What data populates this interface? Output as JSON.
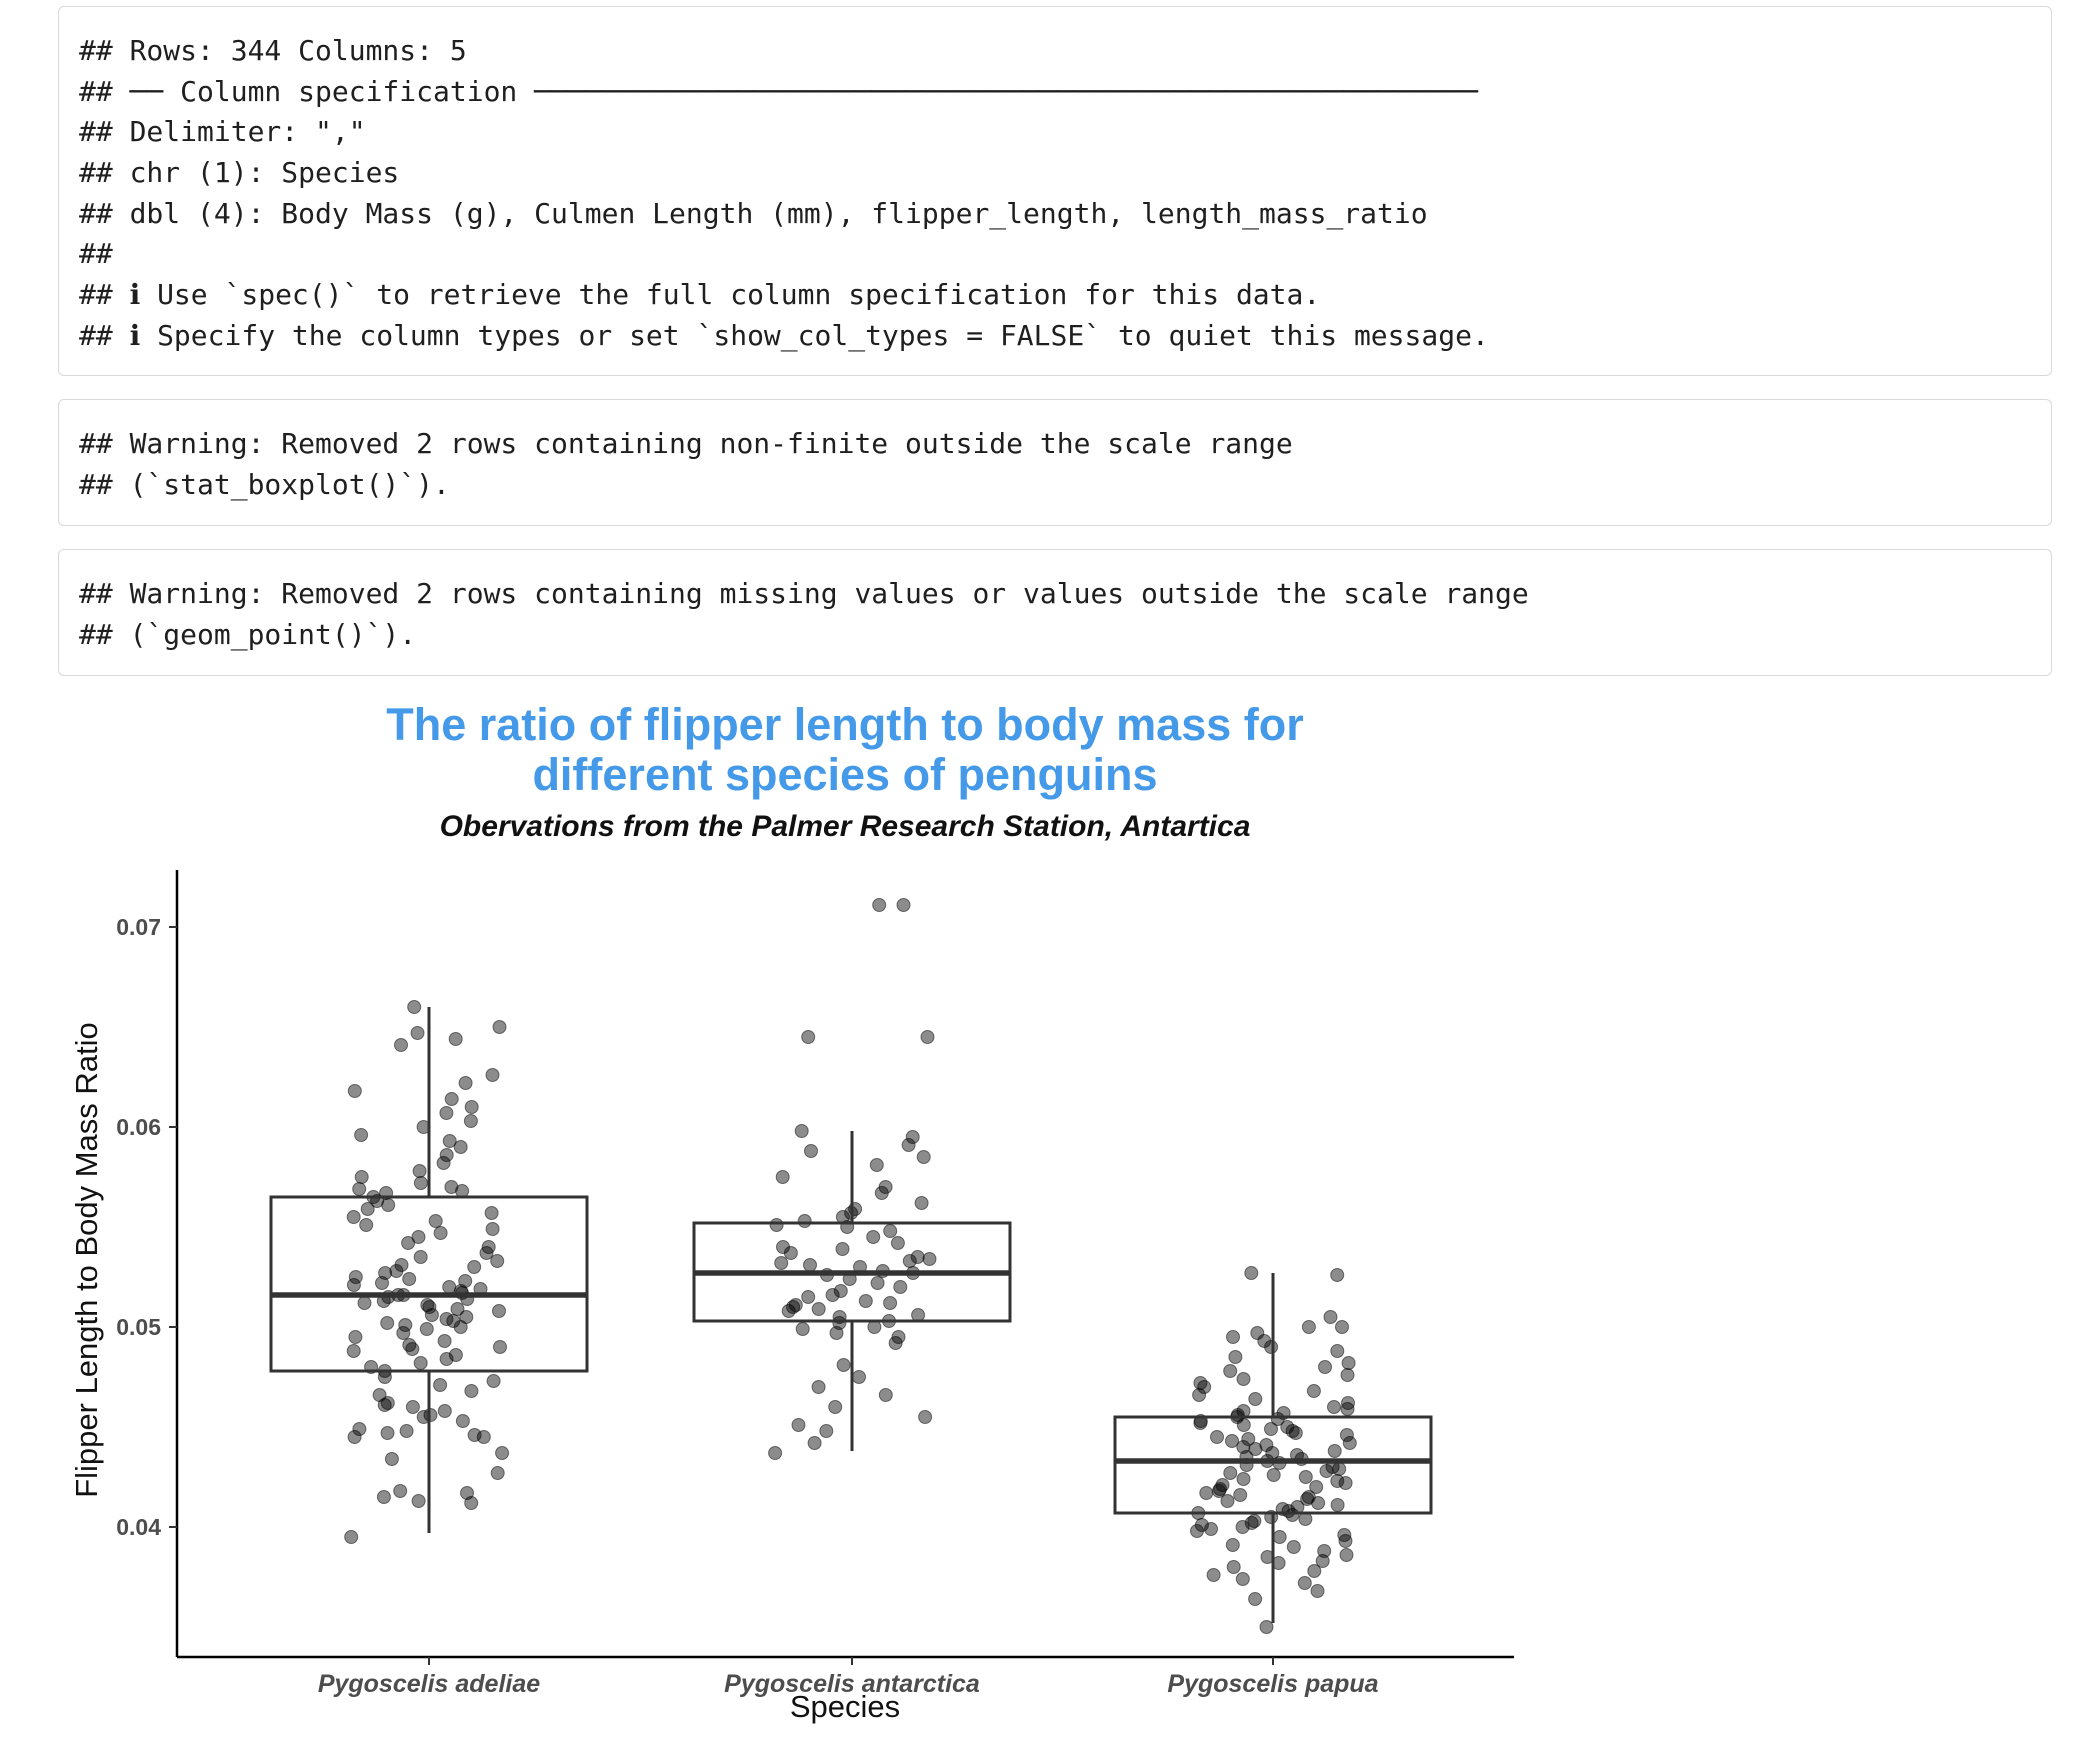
{
  "console": {
    "blocks": [
      {
        "lines": [
          "## Rows: 344 Columns: 5",
          "## ── Column specification ────────────────────────────────────────────────────────",
          "## Delimiter: \",\"",
          "## chr (1): Species",
          "## dbl (4): Body Mass (g), Culmen Length (mm), flipper_length, length_mass_ratio",
          "##",
          "## ℹ Use `spec()` to retrieve the full column specification for this data.",
          "## ℹ Specify the column types or set `show_col_types = FALSE` to quiet this message."
        ]
      },
      {
        "lines": [
          "## Warning: Removed 2 rows containing non-finite outside the scale range",
          "## (`stat_boxplot()`)."
        ]
      },
      {
        "lines": [
          "## Warning: Removed 2 rows containing missing values or values outside the scale range",
          "## (`geom_point()`)."
        ]
      }
    ]
  },
  "colors": {
    "title": "#4499e8",
    "points": "#000000",
    "box": "#333333"
  },
  "chart_data": {
    "type": "box+jitter",
    "title_lines": [
      "The ratio of flipper length to body mass for",
      "different species of penguins"
    ],
    "subtitle": "Obervations from the Palmer Research Station, Antartica",
    "xlabel": "Species",
    "ylabel": "Flipper Length to Body Mass Ratio",
    "categories": [
      "Pygoscelis adeliae",
      "Pygoscelis antarctica",
      "Pygoscelis papua"
    ],
    "y_ticks": [
      "0.04",
      "0.05",
      "0.06",
      "0.07"
    ],
    "ylim": [
      0.0333,
      0.0734
    ],
    "grid": false,
    "boxes": [
      {
        "category": "Pygoscelis adeliae",
        "whisker_low": 0.0397,
        "q1": 0.0478,
        "median": 0.0516,
        "q3": 0.0565,
        "whisker_high": 0.066
      },
      {
        "category": "Pygoscelis antarctica",
        "whisker_low": 0.0438,
        "q1": 0.0503,
        "median": 0.0527,
        "q3": 0.0552,
        "whisker_high": 0.0598
      },
      {
        "category": "Pygoscelis papua",
        "whisker_low": 0.0352,
        "q1": 0.0407,
        "median": 0.0433,
        "q3": 0.0455,
        "whisker_high": 0.0527
      }
    ],
    "points": [
      {
        "category": "Pygoscelis adeliae",
        "values": [
          0.0395,
          0.0412,
          0.0413,
          0.0415,
          0.0417,
          0.0418,
          0.0427,
          0.0434,
          0.0437,
          0.0445,
          0.0445,
          0.0446,
          0.0447,
          0.0448,
          0.0449,
          0.0453,
          0.0455,
          0.0456,
          0.0458,
          0.046,
          0.0461,
          0.0462,
          0.0466,
          0.0468,
          0.0471,
          0.0473,
          0.0475,
          0.0478,
          0.048,
          0.0482,
          0.0484,
          0.0486,
          0.0488,
          0.0489,
          0.049,
          0.0491,
          0.0493,
          0.0495,
          0.0497,
          0.0499,
          0.05,
          0.0501,
          0.0502,
          0.0503,
          0.0504,
          0.0505,
          0.0506,
          0.0508,
          0.0509,
          0.051,
          0.0511,
          0.0512,
          0.0513,
          0.0514,
          0.0515,
          0.0516,
          0.0516,
          0.0517,
          0.0518,
          0.0519,
          0.052,
          0.0521,
          0.0522,
          0.0523,
          0.0524,
          0.0525,
          0.0527,
          0.0528,
          0.053,
          0.0531,
          0.0533,
          0.0535,
          0.0537,
          0.054,
          0.0542,
          0.0545,
          0.0547,
          0.0549,
          0.0551,
          0.0553,
          0.0555,
          0.0557,
          0.0559,
          0.0561,
          0.0563,
          0.0565,
          0.0567,
          0.0568,
          0.0569,
          0.057,
          0.0572,
          0.0575,
          0.0578,
          0.0582,
          0.0586,
          0.059,
          0.0593,
          0.0596,
          0.06,
          0.0603,
          0.0607,
          0.061,
          0.0614,
          0.0618,
          0.0622,
          0.0626,
          0.0641,
          0.0644,
          0.0647,
          0.065,
          0.066
        ]
      },
      {
        "category": "Pygoscelis antarctica",
        "values": [
          0.0437,
          0.0442,
          0.0448,
          0.0451,
          0.0455,
          0.046,
          0.0466,
          0.047,
          0.0475,
          0.0481,
          0.0492,
          0.0495,
          0.0497,
          0.0499,
          0.05,
          0.0502,
          0.0503,
          0.0505,
          0.0506,
          0.0508,
          0.0509,
          0.051,
          0.0511,
          0.0512,
          0.0513,
          0.0515,
          0.0516,
          0.0518,
          0.052,
          0.0522,
          0.0524,
          0.0526,
          0.0527,
          0.0528,
          0.053,
          0.0531,
          0.0532,
          0.0533,
          0.0534,
          0.0535,
          0.0537,
          0.0539,
          0.054,
          0.0542,
          0.0545,
          0.0548,
          0.055,
          0.0551,
          0.0553,
          0.0555,
          0.0557,
          0.0559,
          0.0562,
          0.0567,
          0.057,
          0.0575,
          0.0581,
          0.0585,
          0.0588,
          0.0591,
          0.0595,
          0.0598,
          0.0645,
          0.0645,
          0.0711,
          0.0711
        ]
      },
      {
        "category": "Pygoscelis papua",
        "values": [
          0.035,
          0.0364,
          0.0368,
          0.0372,
          0.0374,
          0.0376,
          0.0378,
          0.038,
          0.0382,
          0.0383,
          0.0385,
          0.0386,
          0.0388,
          0.039,
          0.0391,
          0.0393,
          0.0395,
          0.0396,
          0.0398,
          0.0399,
          0.04,
          0.0401,
          0.0402,
          0.0403,
          0.0404,
          0.0405,
          0.0406,
          0.0407,
          0.0408,
          0.0409,
          0.041,
          0.0411,
          0.0412,
          0.0413,
          0.0414,
          0.0415,
          0.0416,
          0.0417,
          0.0418,
          0.0419,
          0.042,
          0.0421,
          0.0422,
          0.0423,
          0.0424,
          0.0425,
          0.0426,
          0.0427,
          0.0428,
          0.0429,
          0.043,
          0.0431,
          0.0432,
          0.0433,
          0.0434,
          0.0435,
          0.0436,
          0.0437,
          0.0438,
          0.0439,
          0.044,
          0.0441,
          0.0442,
          0.0443,
          0.0444,
          0.0445,
          0.0446,
          0.0447,
          0.0448,
          0.0449,
          0.045,
          0.0451,
          0.0452,
          0.0453,
          0.0454,
          0.0455,
          0.0456,
          0.0457,
          0.0458,
          0.0459,
          0.046,
          0.0462,
          0.0464,
          0.0466,
          0.0468,
          0.047,
          0.0472,
          0.0474,
          0.0476,
          0.0478,
          0.048,
          0.0482,
          0.0485,
          0.0488,
          0.049,
          0.0493,
          0.0495,
          0.0497,
          0.05,
          0.05,
          0.0505,
          0.0526,
          0.0527
        ]
      }
    ]
  }
}
